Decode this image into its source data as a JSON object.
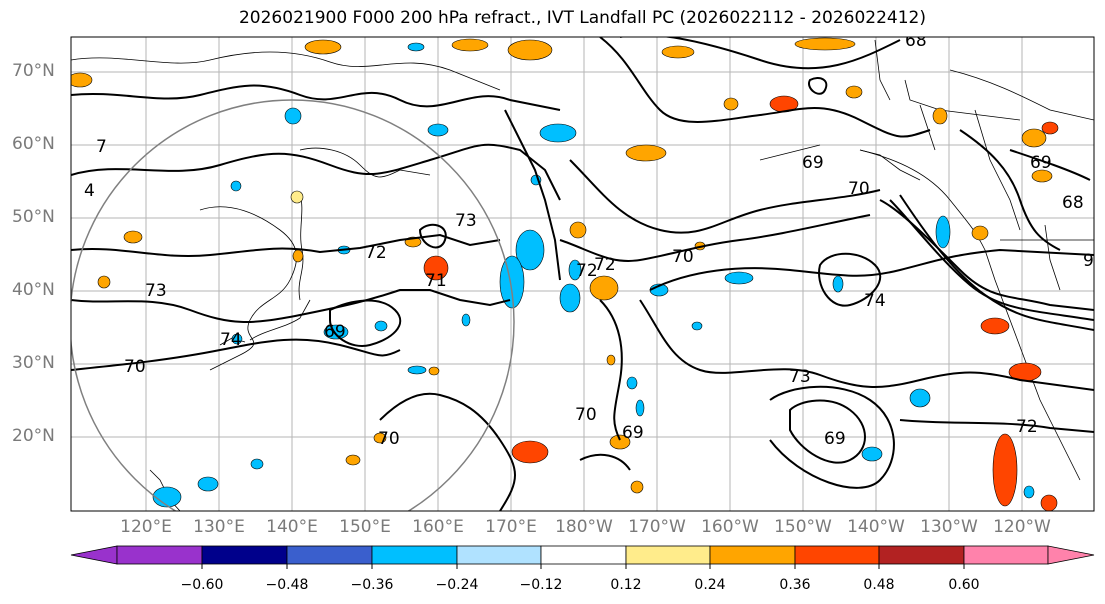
{
  "title": "2026021900 F000 200 hPa refract., IVT Landfall PC (2026022112 - 2026022412)",
  "lat_labels": [
    "70°N",
    "60°N",
    "50°N",
    "40°N",
    "30°N",
    "20°N"
  ],
  "lon_labels": [
    "120°E",
    "130°E",
    "140°E",
    "150°E",
    "160°E",
    "170°E",
    "180°W",
    "170°W",
    "160°W",
    "150°W",
    "140°W",
    "130°W",
    "120°W"
  ],
  "colorbar": {
    "labels": [
      "−0.60",
      "−0.48",
      "−0.36",
      "−0.24",
      "−0.12",
      "0.12",
      "0.24",
      "0.36",
      "0.48",
      "0.60"
    ],
    "colors": [
      "#9932CC",
      "#00008B",
      "#3A5FCD",
      "#00BFFF",
      "#B0E2FF",
      "#FFFFFF",
      "#FFEC8B",
      "#FFA500",
      "#FF4500",
      "#B22222",
      "#FF82AB"
    ]
  },
  "contour_labels": [
    "68",
    "69",
    "70",
    "72",
    "73",
    "74",
    "71",
    "69",
    "70",
    "72",
    "73",
    "70",
    "69",
    "70",
    "72",
    "74",
    "69",
    "68",
    "70",
    "73",
    "69",
    "72",
    "4",
    "7",
    "9"
  ]
}
